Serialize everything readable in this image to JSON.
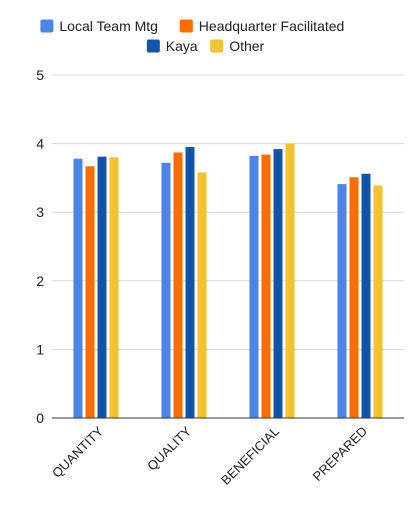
{
  "chart_data": {
    "type": "bar",
    "title": "",
    "xlabel": "",
    "ylabel": "",
    "categories": [
      "QUANTITY",
      "QUALITY",
      "BENEFICIAL",
      "PREPARED"
    ],
    "ylim": [
      0,
      5
    ],
    "yticks": [
      "0",
      "1",
      "2",
      "3",
      "4",
      "5"
    ],
    "grid": true,
    "legend_position": "top",
    "series": [
      {
        "name": "Local Team Mtg",
        "color": "#4a86e8",
        "values": [
          3.78,
          3.72,
          3.82,
          3.41
        ]
      },
      {
        "name": "Headquarter Facilitated",
        "color": "#ff6d01",
        "values": [
          3.67,
          3.87,
          3.84,
          3.51
        ]
      },
      {
        "name": "Kaya",
        "color": "#1155a8",
        "values": [
          3.81,
          3.95,
          3.92,
          3.56
        ]
      },
      {
        "name": "Other",
        "color": "#f1c232",
        "values": [
          3.8,
          3.58,
          4.0,
          3.39
        ]
      }
    ]
  }
}
